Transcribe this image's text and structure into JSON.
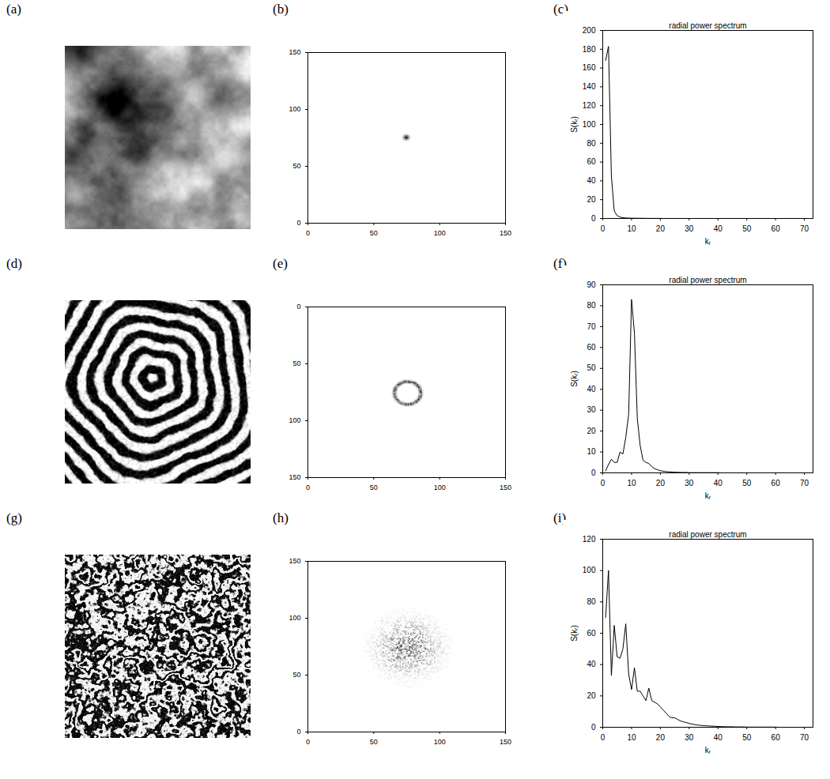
{
  "chart_data": [
    {
      "type": "image",
      "label": "(a)"
    },
    {
      "type": "spectrum",
      "label": "(b)",
      "xlim": [
        0,
        150
      ],
      "ylim": [
        0,
        150
      ],
      "xticks": [
        0,
        50,
        100,
        150
      ],
      "yticks": [
        0,
        50,
        100,
        150
      ],
      "center": [
        75,
        75
      ],
      "radius": 2
    },
    {
      "type": "line",
      "label": "(c)",
      "title": "radial power spectrum",
      "x_label": "kᵣ",
      "y_label": "S(kᵣ)",
      "xlim": [
        0,
        73
      ],
      "ylim": [
        0,
        200
      ],
      "xticks": [
        0,
        10,
        20,
        30,
        40,
        50,
        60,
        70
      ],
      "yticks": [
        0,
        20,
        40,
        60,
        80,
        100,
        120,
        140,
        160,
        180,
        200
      ],
      "color": "#000000",
      "x": [
        1,
        2,
        3,
        4,
        5,
        6,
        7,
        8,
        9,
        10,
        11,
        12,
        13,
        14,
        15,
        16,
        17,
        18,
        19,
        20,
        21,
        22,
        23,
        24,
        25,
        26,
        27,
        28,
        29,
        30,
        31,
        32,
        33,
        34,
        35,
        36,
        37,
        38,
        39,
        40,
        41,
        42,
        43,
        44,
        45,
        46,
        47,
        48,
        49,
        50,
        51,
        52,
        53,
        54,
        55,
        56,
        57,
        58,
        59,
        60,
        61,
        62,
        63,
        64,
        65,
        66,
        67,
        68,
        69,
        70,
        71,
        72
      ],
      "values": [
        168,
        183,
        45,
        8,
        3,
        1.5,
        0.8,
        0.5,
        0.4,
        0.3,
        0.3,
        0.2,
        0.2,
        0.2,
        0.1,
        0.1,
        0.1,
        0.1,
        0.1,
        0.1,
        0,
        0,
        0,
        0,
        0,
        0,
        0,
        0,
        0,
        0,
        0,
        0,
        0,
        0,
        0,
        0,
        0,
        0,
        0,
        0,
        0,
        0,
        0,
        0,
        0,
        0,
        0,
        0,
        0,
        0,
        0,
        0,
        0,
        0,
        0,
        0,
        0,
        0,
        0,
        0,
        0,
        0,
        0,
        0,
        0,
        0,
        0,
        0,
        0,
        0,
        0,
        0
      ]
    },
    {
      "type": "image",
      "label": "(d)"
    },
    {
      "type": "spectrum",
      "label": "(e)",
      "xlim": [
        0,
        150
      ],
      "ylim": [
        150,
        0
      ],
      "xticks": [
        0,
        50,
        100,
        150
      ],
      "yticks": [
        0,
        50,
        100,
        150
      ],
      "center": [
        76,
        76
      ],
      "radius": 10
    },
    {
      "type": "line",
      "label": "(f)",
      "title": "radial power spectrum",
      "x_label": "kᵣ",
      "y_label": "S(kᵣ)",
      "xlim": [
        0,
        73
      ],
      "ylim": [
        0,
        90
      ],
      "xticks": [
        0,
        10,
        20,
        30,
        40,
        50,
        60,
        70
      ],
      "yticks": [
        0,
        10,
        20,
        30,
        40,
        50,
        60,
        70,
        80,
        90
      ],
      "color": "#000000",
      "x": [
        1,
        2,
        3,
        4,
        5,
        6,
        7,
        8,
        9,
        10,
        11,
        12,
        13,
        14,
        15,
        16,
        17,
        18,
        19,
        20,
        21,
        22,
        23,
        24,
        25,
        26,
        27,
        28,
        29,
        30,
        31,
        32,
        33,
        34,
        35,
        36,
        37,
        38,
        39,
        40,
        41,
        42,
        43,
        44,
        45,
        46,
        47,
        48,
        49,
        50,
        51,
        52,
        53,
        54,
        55,
        56,
        57,
        58,
        59,
        60,
        61,
        62,
        63,
        64,
        65,
        66,
        67,
        68,
        69,
        70,
        71,
        72
      ],
      "values": [
        1,
        4,
        6.5,
        5,
        5,
        10,
        9,
        17,
        28,
        83,
        67,
        26,
        13,
        6,
        5,
        4.5,
        3,
        2,
        1.5,
        1,
        0.8,
        0.6,
        0.5,
        0.4,
        0.3,
        0.3,
        0.2,
        0.2,
        0.2,
        0.1,
        0.1,
        0.1,
        0.1,
        0.1,
        0.1,
        0.1,
        0.1,
        0.1,
        0.1,
        0.1,
        0,
        0,
        0,
        0,
        0,
        0,
        0,
        0,
        0,
        0,
        0,
        0,
        0,
        0,
        0,
        0,
        0,
        0,
        0,
        0,
        0,
        0,
        0,
        0,
        0,
        0,
        0,
        0,
        0,
        0,
        0,
        0
      ]
    },
    {
      "type": "image",
      "label": "(g)"
    },
    {
      "type": "spectrum",
      "label": "(h)",
      "xlim": [
        0,
        150
      ],
      "ylim": [
        0,
        150
      ],
      "xticks": [
        0,
        50,
        100,
        150
      ],
      "yticks": [
        0,
        50,
        100,
        150
      ],
      "center": [
        76,
        74
      ],
      "radius": 20
    },
    {
      "type": "line",
      "label": "(i)",
      "title": "radial power spectrum",
      "x_label": "kᵣ",
      "y_label": "S(kᵣ)",
      "xlim": [
        0,
        73
      ],
      "ylim": [
        0,
        120
      ],
      "xticks": [
        0,
        10,
        20,
        30,
        40,
        50,
        60,
        70
      ],
      "yticks": [
        0,
        20,
        40,
        60,
        80,
        100,
        120
      ],
      "color": "#000000",
      "x": [
        1,
        2,
        3,
        4,
        5,
        6,
        7,
        8,
        9,
        10,
        11,
        12,
        13,
        14,
        15,
        16,
        17,
        18,
        19,
        20,
        21,
        22,
        23,
        24,
        25,
        26,
        27,
        28,
        29,
        30,
        31,
        32,
        33,
        34,
        35,
        36,
        37,
        38,
        39,
        40,
        41,
        42,
        43,
        44,
        45,
        46,
        47,
        48,
        49,
        50,
        51,
        52,
        53,
        54,
        55,
        56,
        57,
        58,
        59,
        60,
        61,
        62,
        63,
        64,
        65,
        66,
        67,
        68,
        69,
        70,
        71,
        72
      ],
      "values": [
        70,
        100,
        33,
        65,
        45,
        44,
        50,
        66,
        34,
        24,
        38,
        23,
        23,
        20,
        17,
        25,
        17,
        16,
        15,
        13,
        11,
        9,
        7,
        6,
        6,
        5,
        4,
        3.5,
        3,
        2.5,
        2,
        1.7,
        1.4,
        1.2,
        1,
        0.9,
        0.8,
        0.7,
        0.6,
        0.5,
        0.4,
        0.4,
        0.3,
        0.3,
        0.3,
        0.2,
        0.2,
        0.2,
        0.2,
        0.1,
        0.1,
        0.1,
        0.1,
        0.1,
        0.1,
        0.1,
        0.1,
        0.1,
        0.1,
        0.1,
        0,
        0,
        0,
        0,
        0,
        0,
        0,
        0,
        0,
        0,
        0,
        0
      ]
    }
  ]
}
